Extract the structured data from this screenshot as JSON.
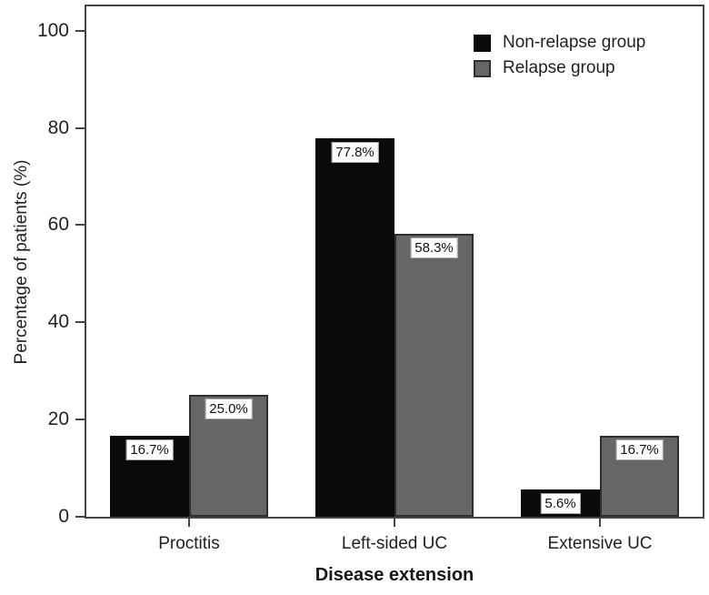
{
  "chart_data": {
    "type": "bar",
    "title": "",
    "xlabel": "Disease extension",
    "ylabel": "Percentage of patients (%)",
    "categories": [
      "Proctitis",
      "Left-sided UC",
      "Extensive UC"
    ],
    "series": [
      {
        "name": "Non-relapse group",
        "color": "#0a0a0a",
        "border_color": "#0a0a0a",
        "values": [
          16.7,
          77.8,
          5.6
        ],
        "labels": [
          "16.7%",
          "77.8%",
          "5.6%"
        ]
      },
      {
        "name": "Relapse group",
        "color": "#666666",
        "border_color": "#2e2e2e",
        "values": [
          25.0,
          58.3,
          16.7
        ],
        "labels": [
          "25.0%",
          "58.3%",
          "16.7%"
        ]
      }
    ],
    "ylim": [
      0,
      105
    ],
    "yticks": [
      0,
      20,
      40,
      60,
      80,
      100
    ],
    "legend_position": "top-right",
    "grid": false,
    "axis_color": "#454545",
    "text_color": "#231f20"
  }
}
